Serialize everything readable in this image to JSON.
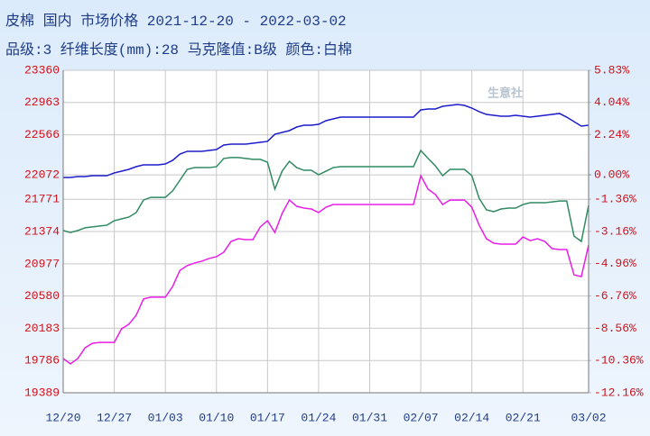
{
  "chart_data": {
    "type": "line",
    "title": "皮棉 国内 市场价格 2021-12-20 - 2022-03-02",
    "subtitle": "品级:3 纤维长度(mm):28 马克隆值:B级 颜色:白棉",
    "watermark": "生意社",
    "categories": [
      "12/20",
      null,
      null,
      null,
      null,
      null,
      null,
      "12/27",
      null,
      null,
      null,
      null,
      null,
      null,
      "01/03",
      null,
      null,
      null,
      null,
      null,
      null,
      "01/10",
      null,
      null,
      null,
      null,
      null,
      null,
      "01/17",
      null,
      null,
      null,
      null,
      null,
      null,
      "01/24",
      null,
      null,
      null,
      null,
      null,
      null,
      "01/31",
      null,
      null,
      null,
      null,
      null,
      null,
      "02/07",
      null,
      null,
      null,
      null,
      null,
      null,
      "02/14",
      null,
      null,
      null,
      null,
      null,
      null,
      "02/21",
      null,
      null,
      null,
      null,
      null,
      null,
      null,
      null,
      "03/02"
    ],
    "ylim": [
      19389,
      23360
    ],
    "yticks": [
      23360,
      22963,
      22566,
      22072,
      21771,
      21374,
      20977,
      20580,
      20183,
      19786,
      19389
    ],
    "y2lim": [
      -12.16,
      5.83
    ],
    "y2ticks": [
      {
        "value": 5.83,
        "label": "5.83%"
      },
      {
        "value": 4.04,
        "label": "4.04%"
      },
      {
        "value": 2.24,
        "label": "2.24%"
      },
      {
        "value": 0,
        "label": "0.00%"
      },
      {
        "value": -1.36,
        "label": "-1.36%"
      },
      {
        "value": -3.16,
        "label": "-3.16%"
      },
      {
        "value": -4.96,
        "label": "-4.96%"
      },
      {
        "value": -6.76,
        "label": "-6.76%"
      },
      {
        "value": -8.56,
        "label": "-8.56%"
      },
      {
        "value": -10.36,
        "label": "-10.36%"
      },
      {
        "value": -12.16,
        "label": "-12.16%"
      }
    ],
    "grid": true,
    "series": [
      {
        "color": "#1c1ccc",
        "values": [
          22040,
          22040,
          22051,
          22051,
          22062,
          22062,
          22062,
          22096,
          22118,
          22140,
          22173,
          22195,
          22195,
          22195,
          22206,
          22251,
          22328,
          22362,
          22362,
          22362,
          22373,
          22384,
          22439,
          22450,
          22450,
          22450,
          22462,
          22473,
          22484,
          22572,
          22595,
          22617,
          22661,
          22683,
          22683,
          22694,
          22739,
          22761,
          22783,
          22783,
          22783,
          22783,
          22783,
          22783,
          22783,
          22783,
          22783,
          22783,
          22783,
          22872,
          22883,
          22883,
          22916,
          22927,
          22939,
          22927,
          22894,
          22850,
          22816,
          22805,
          22794,
          22794,
          22805,
          22794,
          22783,
          22794,
          22805,
          22816,
          22828,
          22783,
          22728,
          22672,
          22683
        ]
      },
      {
        "color": "#2f8a62",
        "axis": "y2",
        "values": [
          -3.11,
          -3.22,
          -3.11,
          -2.96,
          -2.91,
          -2.86,
          -2.81,
          -2.56,
          -2.46,
          -2.36,
          -2.11,
          -1.41,
          -1.26,
          -1.26,
          -1.26,
          -0.9,
          -0.3,
          0.3,
          0.4,
          0.4,
          0.4,
          0.45,
          0.91,
          0.96,
          0.96,
          0.91,
          0.86,
          0.86,
          0.7,
          -0.8,
          0.2,
          0.75,
          0.4,
          0.25,
          0.25,
          0,
          0.2,
          0.4,
          0.45,
          0.45,
          0.45,
          0.45,
          0.45,
          0.45,
          0.45,
          0.45,
          0.45,
          0.45,
          0.45,
          1.36,
          0.91,
          0.5,
          -0.05,
          0.3,
          0.3,
          0.3,
          -0.05,
          -1.31,
          -1.96,
          -2.06,
          -1.91,
          -1.86,
          -1.86,
          -1.66,
          -1.56,
          -1.56,
          -1.56,
          -1.51,
          -1.46,
          -1.46,
          -3.42,
          -3.72,
          -1.71
        ]
      },
      {
        "color": "#e81ee8",
        "axis": "y2",
        "values": [
          -10.25,
          -10.55,
          -10.25,
          -9.65,
          -9.4,
          -9.35,
          -9.35,
          -9.35,
          -8.59,
          -8.34,
          -7.84,
          -6.93,
          -6.83,
          -6.83,
          -6.83,
          -6.23,
          -5.33,
          -5.07,
          -4.92,
          -4.82,
          -4.67,
          -4.57,
          -4.32,
          -3.72,
          -3.57,
          -3.62,
          -3.62,
          -2.91,
          -2.56,
          -3.22,
          -2.16,
          -1.41,
          -1.76,
          -1.86,
          -1.91,
          -2.11,
          -1.81,
          -1.66,
          -1.66,
          -1.66,
          -1.66,
          -1.66,
          -1.66,
          -1.66,
          -1.66,
          -1.66,
          -1.66,
          -1.66,
          -1.66,
          -0.05,
          -0.8,
          -1.1,
          -1.66,
          -1.41,
          -1.41,
          -1.41,
          -1.81,
          -2.81,
          -3.57,
          -3.82,
          -3.87,
          -3.87,
          -3.87,
          -3.47,
          -3.67,
          -3.57,
          -3.72,
          -4.12,
          -4.17,
          -4.17,
          -5.58,
          -5.68,
          -3.92
        ]
      }
    ]
  }
}
